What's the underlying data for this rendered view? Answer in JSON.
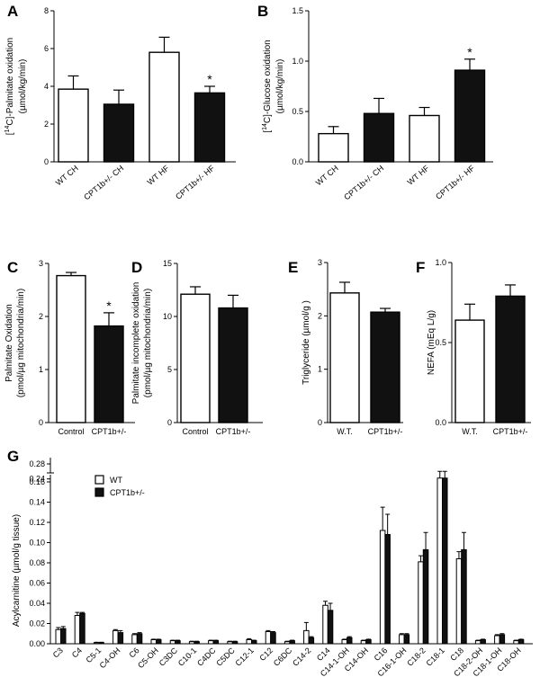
{
  "colors": {
    "wt_fill": "#ffffff",
    "het_fill": "#111111",
    "stroke": "#000000"
  },
  "chart_data": [
    {
      "panel": "A",
      "type": "bar",
      "ylabel_pre": "[",
      "ylabel_sup": "14",
      "ylabel_post": "C]-Palmitate oxidation",
      "ylabel2": "(µmol/kg/min)",
      "ylim": [
        0,
        8
      ],
      "yticks": [
        "0",
        "2",
        "4",
        "6",
        "8"
      ],
      "ytick_values": [
        0,
        2,
        4,
        6,
        8
      ],
      "categories": [
        "WT CH",
        "CPT1b+/- CH",
        "WT HF",
        "CPT1b+/- HF"
      ],
      "values": [
        3.85,
        3.05,
        5.8,
        3.65
      ],
      "errors": [
        0.7,
        0.75,
        0.8,
        0.35
      ],
      "fills": [
        "wt",
        "het",
        "wt",
        "het"
      ],
      "stars": [
        "",
        "",
        "",
        "*"
      ]
    },
    {
      "panel": "B",
      "type": "bar",
      "ylabel_pre": "[",
      "ylabel_sup": "14",
      "ylabel_post": "C]-Glucose oxidation",
      "ylabel2": "(µmol/kg/min)",
      "ylim": [
        0,
        1.5
      ],
      "yticks": [
        "0.0",
        "0.5",
        "1.0",
        "1.5"
      ],
      "ytick_values": [
        0,
        0.5,
        1,
        1.5
      ],
      "categories": [
        "WT CH",
        "CPT1b+/- CH",
        "WT HF",
        "CPT1b+/- HF"
      ],
      "values": [
        0.28,
        0.48,
        0.46,
        0.91
      ],
      "errors": [
        0.07,
        0.15,
        0.08,
        0.11
      ],
      "fills": [
        "wt",
        "het",
        "wt",
        "het"
      ],
      "stars": [
        "",
        "",
        "",
        "*"
      ]
    },
    {
      "panel": "C",
      "type": "bar",
      "ylabel": "Palmitate Oxidation",
      "ylabel2": "(pmol/µg mitochondria/min)",
      "ylim": [
        0,
        3
      ],
      "yticks": [
        "0",
        "1",
        "2",
        "3"
      ],
      "ytick_values": [
        0,
        1,
        2,
        3
      ],
      "categories": [
        "Control",
        "CPT1b+/-"
      ],
      "values": [
        2.77,
        1.82
      ],
      "errors": [
        0.06,
        0.25
      ],
      "fills": [
        "wt",
        "het"
      ],
      "stars": [
        "",
        "*"
      ]
    },
    {
      "panel": "D",
      "type": "bar",
      "ylabel": "Palmitate incomplete oxidation",
      "ylabel2": "(pmol/µg mitochondria/min)",
      "ylim": [
        0,
        15
      ],
      "yticks": [
        "0",
        "5",
        "10",
        "15"
      ],
      "ytick_values": [
        0,
        5,
        10,
        15
      ],
      "categories": [
        "Control",
        "CPT1b+/-"
      ],
      "values": [
        12.1,
        10.8
      ],
      "errors": [
        0.7,
        1.2
      ],
      "fills": [
        "wt",
        "het"
      ],
      "stars": [
        "",
        ""
      ]
    },
    {
      "panel": "E",
      "type": "bar",
      "ylabel": "Triglyceride (µmol/g )",
      "ylim": [
        0,
        3
      ],
      "yticks": [
        "0",
        "1",
        "2",
        "3"
      ],
      "ytick_values": [
        0,
        1,
        2,
        3
      ],
      "categories": [
        "W.T.",
        "CPT1b+/-"
      ],
      "values": [
        2.43,
        2.07
      ],
      "errors": [
        0.2,
        0.07
      ],
      "fills": [
        "wt",
        "het"
      ],
      "stars": [
        "",
        ""
      ]
    },
    {
      "panel": "F",
      "type": "bar",
      "ylabel": "NEFA (mEq L/g)",
      "ylim": [
        0,
        1.0
      ],
      "yticks": [
        "0.0",
        "0.5",
        "1.0"
      ],
      "ytick_values": [
        0,
        0.5,
        1.0
      ],
      "categories": [
        "W.T.",
        "CPT1b+/-"
      ],
      "values": [
        0.64,
        0.79
      ],
      "errors": [
        0.1,
        0.07
      ],
      "fills": [
        "wt",
        "het"
      ],
      "stars": [
        "",
        ""
      ]
    },
    {
      "panel": "G",
      "type": "bar",
      "ylabel": "Acylcarnitine (µmol/g tissue)",
      "yticks": [
        "0.00",
        "0.02",
        "0.04",
        "0.06",
        "0.08",
        "0.10",
        "0.12",
        "0.14",
        "0.16"
      ],
      "ytick_values": [
        0,
        0.02,
        0.04,
        0.06,
        0.08,
        0.1,
        0.12,
        0.14,
        0.16
      ],
      "yticks_upper": [
        "0.24",
        "0.28"
      ],
      "ytick_values_upper": [
        0.24,
        0.28
      ],
      "legend": [
        "WT",
        "CPT1b+/-"
      ],
      "categories": [
        "C3",
        "C4",
        "C5-1",
        "C4-OH",
        "C6",
        "C5-OH",
        "C3DC",
        "C10-1",
        "C4DC",
        "C5DC",
        "C12-1",
        "C12",
        "C6DC",
        "C14-2",
        "C14",
        "C14-1-OH",
        "C14-OH",
        "C16",
        "C16-1-OH",
        "C18-2",
        "C18-1",
        "C18",
        "C18-2-OH",
        "C18-1-OH",
        "C18-OH"
      ],
      "series": [
        {
          "name": "WT",
          "values": [
            0.014,
            0.028,
            0.001,
            0.013,
            0.009,
            0.004,
            0.003,
            0.002,
            0.003,
            0.002,
            0.004,
            0.012,
            0.002,
            0.013,
            0.038,
            0.004,
            0.003,
            0.112,
            0.009,
            0.081,
            0.235,
            0.084,
            0.003,
            0.008,
            0.003
          ],
          "errors": [
            0.002,
            0.003,
            0.0005,
            0.001,
            0.001,
            0.0005,
            0.0005,
            0.0005,
            0.0005,
            0.0005,
            0.001,
            0.001,
            0.0005,
            0.008,
            0.004,
            0.0005,
            0.0005,
            0.023,
            0.001,
            0.006,
            0.018,
            0.007,
            0.0005,
            0.001,
            0.0005
          ]
        },
        {
          "name": "CPT1b+/-",
          "values": [
            0.015,
            0.03,
            0.001,
            0.011,
            0.01,
            0.004,
            0.003,
            0.002,
            0.003,
            0.002,
            0.003,
            0.011,
            0.003,
            0.006,
            0.033,
            0.006,
            0.004,
            0.108,
            0.009,
            0.093,
            0.235,
            0.093,
            0.004,
            0.009,
            0.004
          ],
          "errors": [
            0.002,
            0.001,
            0.0005,
            0.002,
            0.001,
            0.0005,
            0.0005,
            0.0005,
            0.0005,
            0.0005,
            0.0005,
            0.001,
            0.0005,
            0.001,
            0.007,
            0.001,
            0.0005,
            0.02,
            0.001,
            0.017,
            0.018,
            0.017,
            0.0005,
            0.001,
            0.0005
          ]
        }
      ]
    }
  ]
}
